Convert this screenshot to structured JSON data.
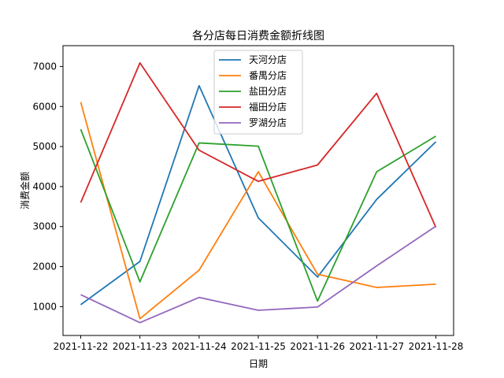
{
  "chart_data": {
    "type": "line",
    "title": "各分店每日消费金额折线图",
    "xlabel": "日期",
    "ylabel": "消费金额",
    "categories": [
      "2021-11-22",
      "2021-11-23",
      "2021-11-24",
      "2021-11-25",
      "2021-11-26",
      "2021-11-27",
      "2021-11-28"
    ],
    "yticks": [
      1000,
      2000,
      3000,
      4000,
      5000,
      6000,
      7000
    ],
    "ylim": [
      280,
      7520
    ],
    "grid": false,
    "legend_position": "top-center",
    "series": [
      {
        "name": "天河分店",
        "color": "#1f77b4",
        "values": [
          1050,
          2130,
          6520,
          3220,
          1740,
          3680,
          5120
        ]
      },
      {
        "name": "番禺分店",
        "color": "#ff7f0e",
        "values": [
          6110,
          700,
          1910,
          4370,
          1810,
          1480,
          1560
        ]
      },
      {
        "name": "盐田分店",
        "color": "#2ca02c",
        "values": [
          5430,
          1620,
          5090,
          5010,
          1140,
          4370,
          5260
        ]
      },
      {
        "name": "福田分店",
        "color": "#d62728",
        "values": [
          3600,
          7090,
          4910,
          4130,
          4540,
          6330,
          2980
        ]
      },
      {
        "name": "罗湖分店",
        "color": "#9467bd",
        "values": [
          1300,
          600,
          1230,
          910,
          990,
          2020,
          3010
        ]
      }
    ]
  }
}
